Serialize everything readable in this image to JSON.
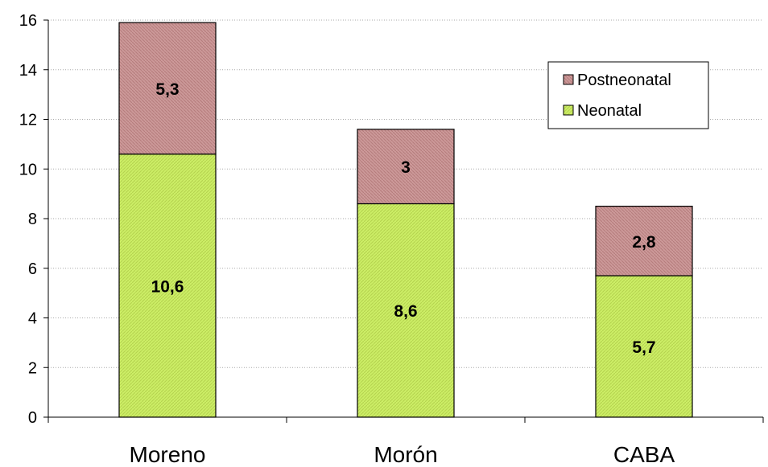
{
  "chart_data": {
    "type": "bar",
    "stacked": true,
    "categories": [
      "Moreno",
      "Morón",
      "CABA"
    ],
    "series": [
      {
        "name": "Neonatal",
        "values": [
          10.6,
          8.6,
          5.7
        ],
        "labels": [
          "10,6",
          "8,6",
          "5,7"
        ],
        "color": "#ccee66"
      },
      {
        "name": "Postneonatal",
        "values": [
          5.3,
          3,
          2.8
        ],
        "labels": [
          "5,3",
          "3",
          "2,8"
        ],
        "color": "#cc9999"
      }
    ],
    "ylim": [
      0,
      16
    ],
    "yticks": [
      0,
      2,
      4,
      6,
      8,
      10,
      12,
      14,
      16
    ],
    "grid": true,
    "legend_position": "top-right",
    "legend_order": [
      "Postneonatal",
      "Neonatal"
    ],
    "title": "",
    "xlabel": "",
    "ylabel": ""
  }
}
